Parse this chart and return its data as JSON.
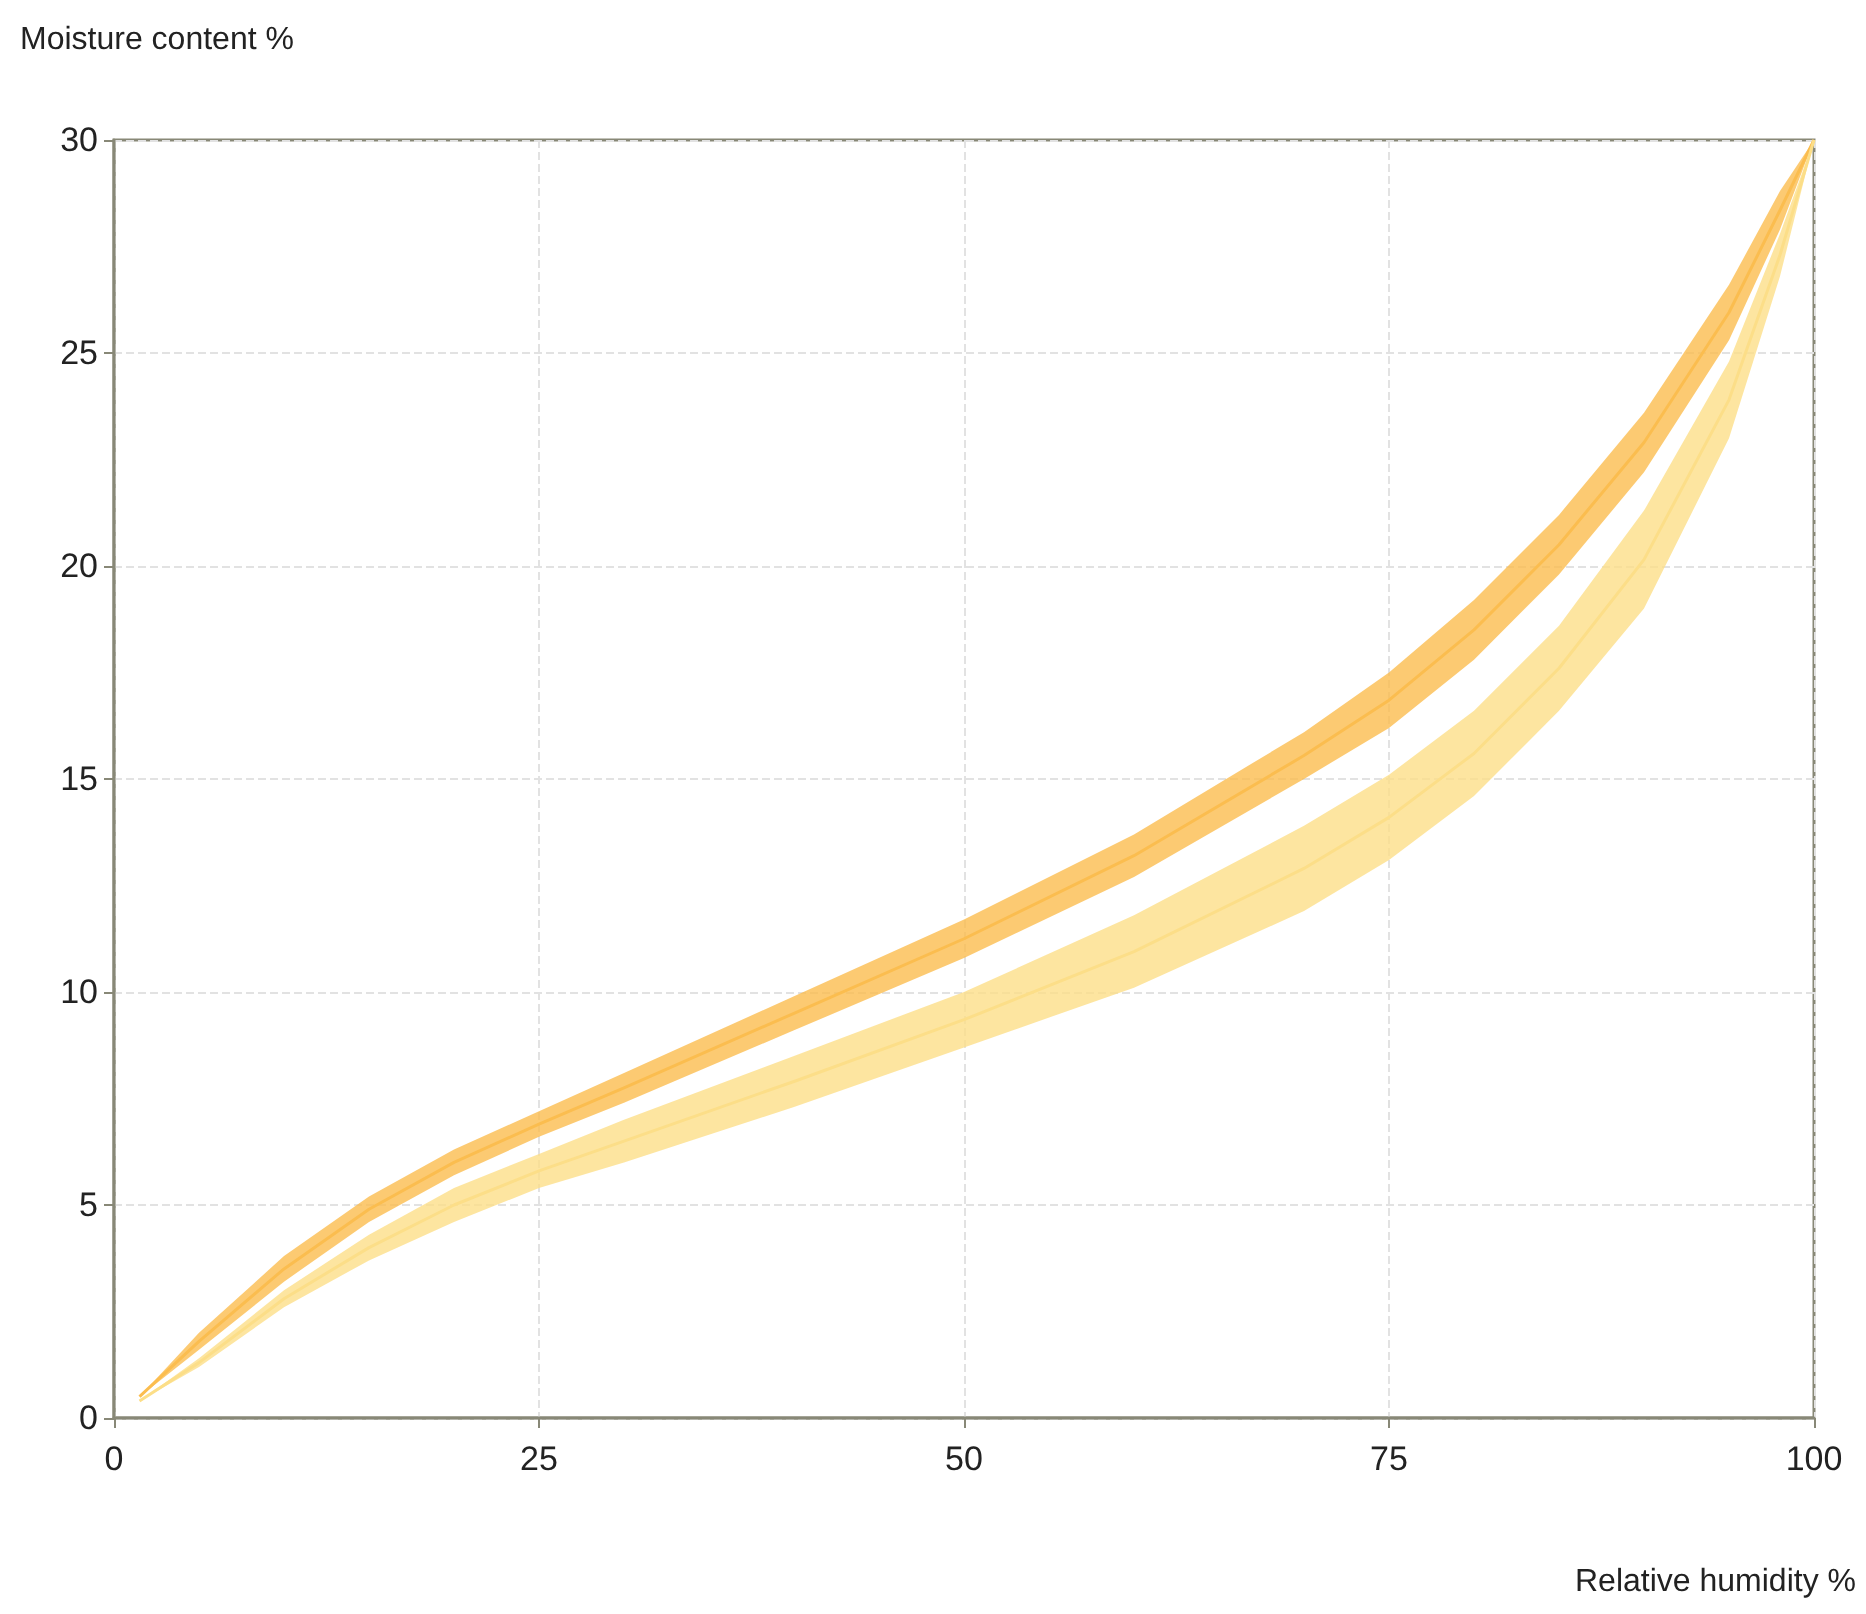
{
  "chart_data": {
    "type": "line",
    "marker": "none",
    "xlabel": "Relative humidity %",
    "ylabel": "Moisture content %",
    "x": [
      1.5,
      5,
      10,
      15,
      20,
      25,
      30,
      40,
      50,
      60,
      70,
      75,
      80,
      85,
      90,
      95,
      98,
      100
    ],
    "series": [
      {
        "color": "#fbbd4f",
        "values": [
          0.5,
          1.8,
          3.5,
          4.9,
          6,
          6.9,
          7.75,
          9.5,
          11.25,
          13.2,
          15.55,
          16.85,
          18.5,
          20.5,
          22.9,
          25.95,
          28.35,
          30
        ],
        "upper": [
          0.5,
          2,
          3.8,
          5.2,
          6.3,
          7.2,
          8.1,
          9.9,
          11.7,
          13.7,
          16.1,
          17.5,
          19.2,
          21.2,
          23.6,
          26.6,
          28.8,
          30
        ],
        "lower": [
          0.5,
          1.6,
          3.2,
          4.6,
          5.7,
          6.6,
          7.4,
          9.1,
          10.8,
          12.7,
          15,
          16.2,
          17.8,
          19.8,
          22.2,
          25.3,
          27.9,
          30
        ]
      },
      {
        "color": "#fcde88",
        "values": [
          0.4,
          1.3,
          2.8,
          4,
          5,
          5.8,
          6.5,
          7.9,
          9.35,
          10.95,
          12.9,
          14.1,
          15.6,
          17.6,
          20.15,
          23.9,
          27.3,
          30
        ],
        "upper": [
          0.4,
          1.4,
          3,
          4.3,
          5.4,
          6.2,
          7,
          8.5,
          10,
          11.8,
          13.9,
          15.1,
          16.6,
          18.6,
          21.3,
          24.8,
          27.8,
          30
        ],
        "lower": [
          0.4,
          1.2,
          2.6,
          3.7,
          4.6,
          5.4,
          6,
          7.3,
          8.7,
          10.1,
          11.9,
          13.1,
          14.6,
          16.6,
          19,
          23,
          26.8,
          30
        ]
      }
    ],
    "xlim": [
      0,
      100
    ],
    "xticks": [
      0,
      25,
      50,
      75,
      100
    ],
    "ylim": [
      0,
      30
    ],
    "yticks": [
      0,
      5,
      10,
      15,
      20,
      25,
      30
    ],
    "grid": true
  }
}
